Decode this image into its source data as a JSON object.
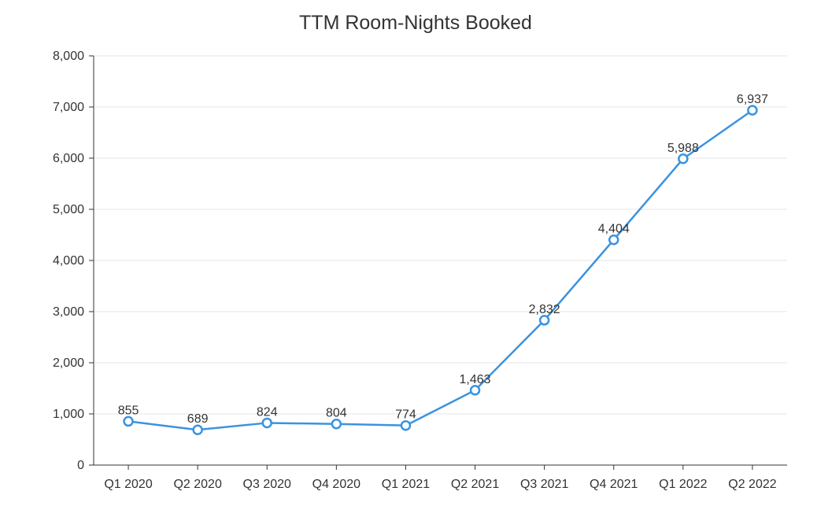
{
  "chart_data": {
    "type": "line",
    "title": "TTM Room-Nights Booked",
    "xlabel": "",
    "ylabel": "",
    "categories": [
      "Q1 2020",
      "Q2 2020",
      "Q3 2020",
      "Q4 2020",
      "Q1 2021",
      "Q2 2021",
      "Q3 2021",
      "Q4 2021",
      "Q1 2022",
      "Q2 2022"
    ],
    "series": [
      {
        "values": [
          855,
          689,
          824,
          804,
          774,
          1463,
          2832,
          4404,
          5988,
          6937
        ],
        "labels": [
          "855",
          "689",
          "824",
          "804",
          "774",
          "1,463",
          "2,832",
          "4,404",
          "5,988",
          "6,937"
        ],
        "color": "#3a93e0"
      }
    ],
    "ylim": [
      0,
      8000
    ],
    "yticks": [
      0,
      1000,
      2000,
      3000,
      4000,
      5000,
      6000,
      7000,
      8000
    ],
    "ytick_labels": [
      "0",
      "1,000",
      "2,000",
      "3,000",
      "4,000",
      "5,000",
      "6,000",
      "7,000",
      "8,000"
    ],
    "grid": true,
    "legend": "none"
  }
}
